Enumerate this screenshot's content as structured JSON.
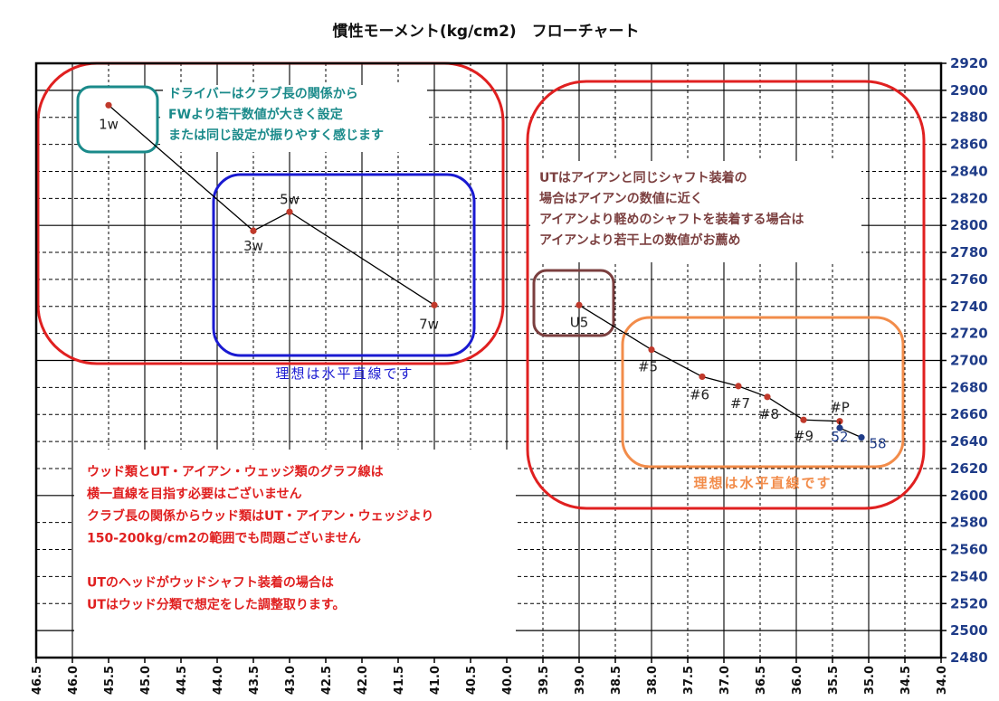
{
  "chart_data": {
    "type": "line",
    "title": "慣性モーメント(kg/cm2)　フローチャート",
    "xlim": [
      46.5,
      34.0
    ],
    "x_axis_reversed": true,
    "ylim": [
      2480,
      2920
    ],
    "x_ticks": [
      "46.5",
      "46.0",
      "45.5",
      "45.0",
      "44.5",
      "44.0",
      "43.5",
      "43.0",
      "42.5",
      "42.0",
      "41.5",
      "41.0",
      "40.5",
      "40.0",
      "39.5",
      "39.0",
      "38.5",
      "38.0",
      "37.5",
      "37.0",
      "36.5",
      "36.0",
      "35.5",
      "35.0",
      "34.5",
      "34.0"
    ],
    "y_ticks": [
      "2480",
      "2500",
      "2520",
      "2540",
      "2560",
      "2580",
      "2600",
      "2620",
      "2640",
      "2660",
      "2680",
      "2700",
      "2720",
      "2740",
      "2760",
      "2780",
      "2800",
      "2820",
      "2840",
      "2860",
      "2880",
      "2900",
      "2920"
    ],
    "grid": true,
    "y_axis_side": "right",
    "y_tick_color": "#1f3c88",
    "series": [
      {
        "points": [
          {
            "label": "1w",
            "x": 45.5,
            "y": 2889
          },
          {
            "label": "3w",
            "x": 43.5,
            "y": 2796
          },
          {
            "label": "5w",
            "x": 43.0,
            "y": 2810
          },
          {
            "label": "7w",
            "x": 41.0,
            "y": 2741
          }
        ],
        "marker_color": "#c0392b"
      },
      {
        "points": [
          {
            "label": "U5",
            "x": 39.0,
            "y": 2741
          },
          {
            "label": "#5",
            "x": 38.0,
            "y": 2708
          },
          {
            "label": "#6",
            "x": 37.3,
            "y": 2688
          },
          {
            "label": "#7",
            "x": 36.8,
            "y": 2681
          },
          {
            "label": "#8",
            "x": 36.4,
            "y": 2673
          },
          {
            "label": "#9",
            "x": 35.9,
            "y": 2656
          },
          {
            "label": "#P",
            "x": 35.4,
            "y": 2655
          }
        ],
        "marker_color": "#c0392b"
      },
      {
        "points": [
          {
            "label": "#P",
            "x": 35.4,
            "y": 2655
          },
          {
            "label": "52",
            "x": 35.4,
            "y": 2650
          },
          {
            "label": "58",
            "x": 35.1,
            "y": 2643
          }
        ],
        "marker_color": "#1f3c88",
        "label_color": "#1f3c88"
      }
    ],
    "annotations": [
      {
        "id": "driver-note",
        "color": "#1a8a8a",
        "lines": [
          "ドライバーはクラブ長の関係から",
          "FWより若干数値が大きく設定",
          "または同じ設定が振りやすく感じます"
        ]
      },
      {
        "id": "ut-note",
        "color": "#7b3f3f",
        "lines": [
          "UTはアイアンと同じシャフト装着の",
          "場合はアイアンの数値に近く",
          "アイアンより軽めのシャフトを装着する場合は",
          "アイアンより若干上の数値がお薦め"
        ]
      },
      {
        "id": "wood-ideal",
        "color": "#1a1ad1",
        "lines": [
          "理想は水平直線です"
        ]
      },
      {
        "id": "iron-ideal",
        "color": "#f28c4a",
        "lines": [
          "理想は水平直線です"
        ]
      },
      {
        "id": "main-note",
        "color": "#e02020",
        "lines": [
          "ウッド類とUT・アイアン・ウェッジ類のグラフ線は",
          "横一直線を目指す必要はございません",
          "クラブ長の関係からウッド類はUT・アイアン・ウェッジより",
          "150-200kg/cm2の範囲でも問題ございません",
          "",
          "UTのヘッドがウッドシャフト装着の場合は",
          "UTはウッド分類で想定をした調整取ります。"
        ]
      }
    ],
    "highlight_boxes": [
      {
        "name": "wood-group",
        "color": "#e02020"
      },
      {
        "name": "iron-group",
        "color": "#e02020"
      },
      {
        "name": "driver-box",
        "color": "#1a8a8a"
      },
      {
        "name": "fw-ideal-box",
        "color": "#1a1ad1"
      },
      {
        "name": "ut-box",
        "color": "#7b3f3f"
      },
      {
        "name": "iron-ideal-box",
        "color": "#f28c4a"
      }
    ]
  }
}
